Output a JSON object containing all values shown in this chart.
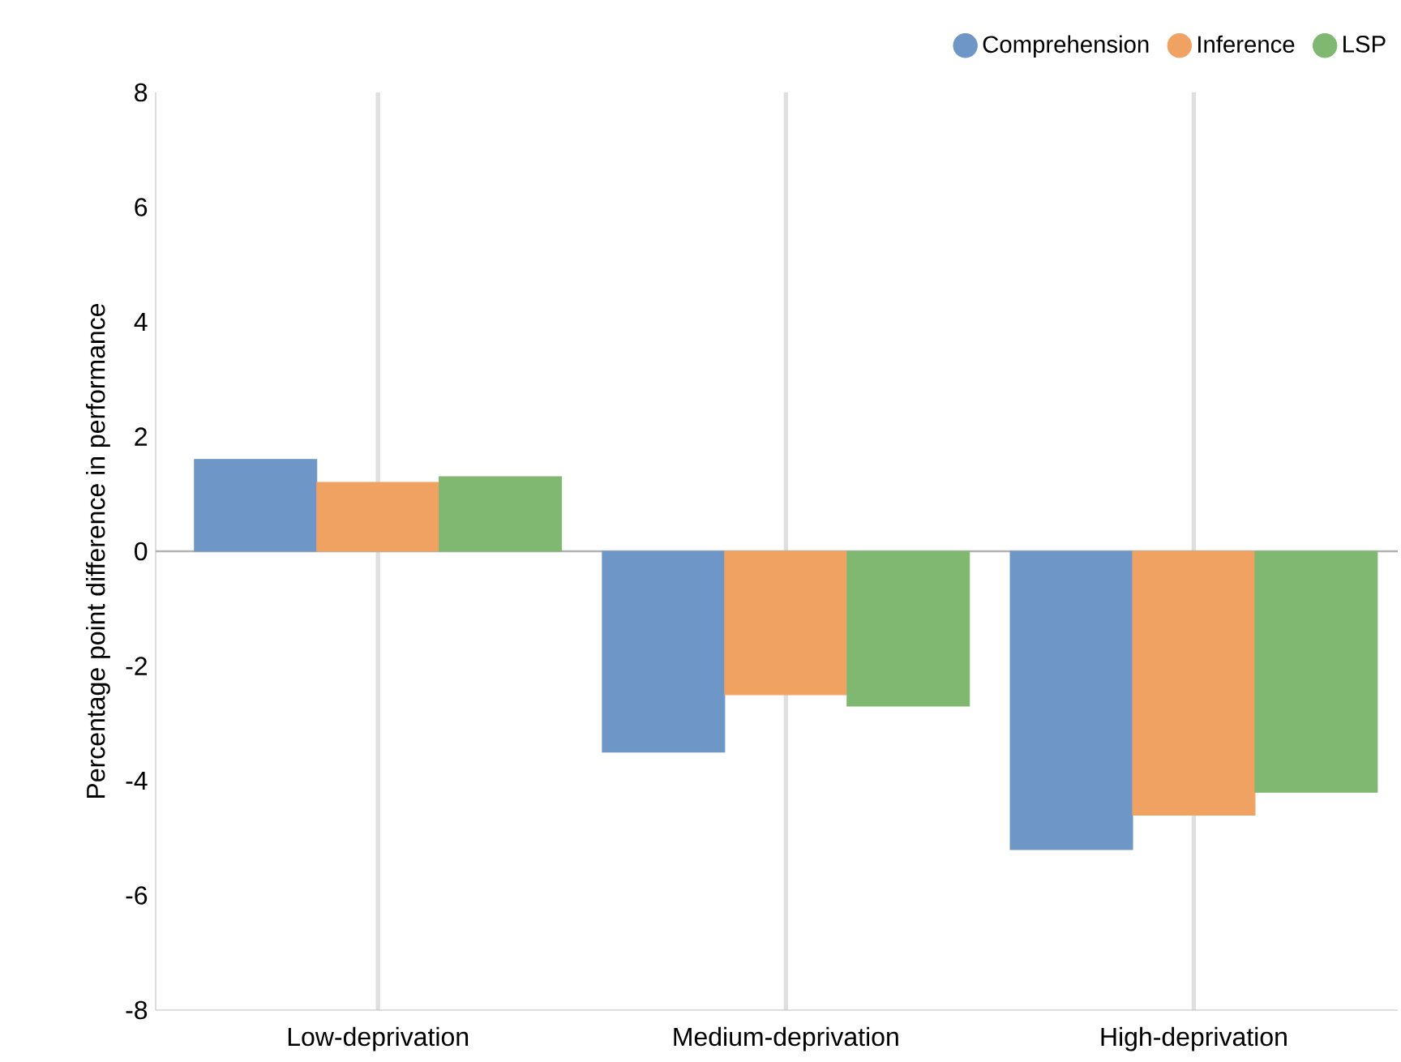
{
  "chart_data": {
    "type": "bar",
    "ylabel": "Percentage point difference in performance",
    "categories": [
      "Low-deprivation",
      "Medium-deprivation",
      "High-deprivation"
    ],
    "series": [
      {
        "name": "Comprehension",
        "color": "#6e96c6",
        "values": [
          1.6,
          -3.5,
          -5.2
        ]
      },
      {
        "name": "Inference",
        "color": "#f0a263",
        "values": [
          1.2,
          -2.5,
          -4.6
        ]
      },
      {
        "name": "LSP",
        "color": "#80b872",
        "values": [
          1.3,
          -2.7,
          -4.2
        ]
      }
    ],
    "ylim": [
      -8,
      8
    ],
    "yticks": [
      -8,
      -6,
      -4,
      -2,
      0,
      2,
      4,
      6,
      8
    ],
    "grid": "x",
    "legend": "top right",
    "marker": "circle"
  }
}
